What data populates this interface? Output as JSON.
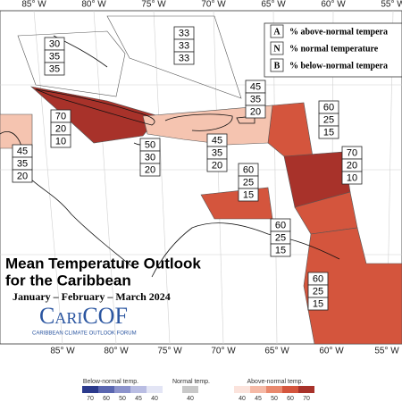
{
  "longitude_labels_top": [
    "85° W",
    "80° W",
    "75° W",
    "70° W",
    "65° W",
    "60° W",
    "55° W"
  ],
  "longitude_labels_bottom": [
    "85° W",
    "80° W",
    "75° W",
    "70° W",
    "65° W",
    "60° W",
    "55° W"
  ],
  "key": {
    "rows": [
      {
        "letter": "A",
        "text": "% above-normal tempera"
      },
      {
        "letter": "N",
        "text": "% normal temperature"
      },
      {
        "letter": "B",
        "text": "% below-normal tempera"
      }
    ]
  },
  "regions": [
    {
      "values": [
        30,
        35,
        35
      ]
    },
    {
      "values": [
        33,
        33,
        33
      ]
    },
    {
      "values": [
        45,
        35,
        20
      ]
    },
    {
      "values": [
        70,
        20,
        10
      ]
    },
    {
      "values": [
        45,
        35,
        20
      ]
    },
    {
      "values": [
        50,
        30,
        20
      ]
    },
    {
      "values": [
        45,
        35,
        20
      ]
    },
    {
      "values": [
        60,
        25,
        15
      ]
    },
    {
      "values": [
        70,
        20,
        10
      ]
    },
    {
      "values": [
        60,
        25,
        15
      ]
    },
    {
      "values": [
        60,
        25,
        15
      ]
    },
    {
      "values": [
        60,
        25,
        15
      ]
    }
  ],
  "title": {
    "line1": "Mean Temperature Outlook",
    "line2": "for the Caribbean",
    "period": "January – February – March 2024"
  },
  "logo": {
    "name": "CariCOF",
    "tagline": "CARIBBEAN CLIMATE OUTLOOK FORUM"
  },
  "scale": {
    "groups": [
      {
        "title": "Below-normal temp.",
        "ticks": [
          70,
          60,
          50,
          45,
          40
        ],
        "colors": [
          "#2b3a8c",
          "#5a66b0",
          "#8c93cc",
          "#b9bde3",
          "#e3e5f5"
        ]
      },
      {
        "title": "Normal temp.",
        "ticks": [
          40
        ],
        "colors": [
          "#c8c8c8"
        ]
      },
      {
        "title": "Above-normal temp.",
        "ticks": [
          40,
          45,
          50,
          60,
          70
        ],
        "colors": [
          "#fbe3dc",
          "#f5b9a6",
          "#e9886d",
          "#d4553d",
          "#a8322a"
        ]
      }
    ]
  }
}
